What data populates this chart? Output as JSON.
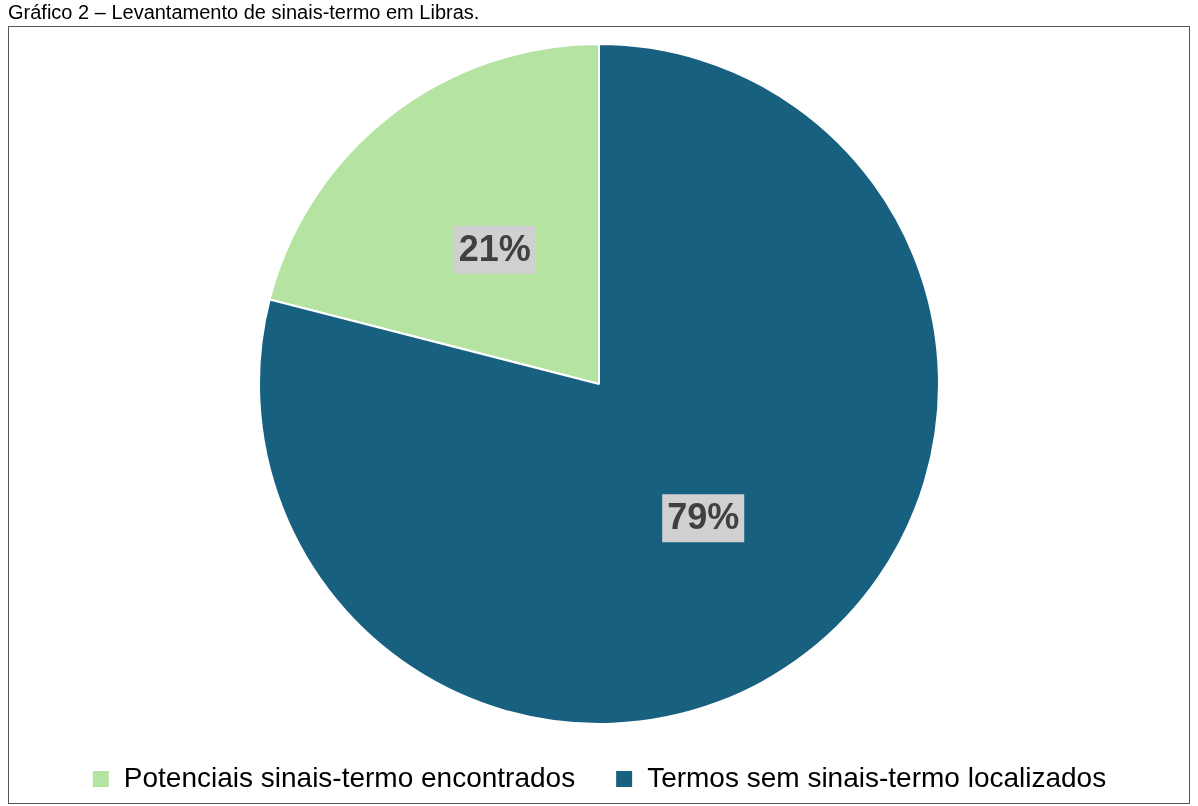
{
  "chart_data": {
    "type": "pie",
    "title": "Gráfico 2 – Levantamento de sinais-termo em Libras.",
    "categories": [
      "Potenciais sinais-termo encontrados",
      "Termos sem sinais-termo localizados"
    ],
    "values": [
      21,
      79
    ],
    "value_labels": [
      "21%",
      "79%"
    ],
    "colors": [
      "#b5e3a2",
      "#176080"
    ],
    "legend": "bottom"
  }
}
